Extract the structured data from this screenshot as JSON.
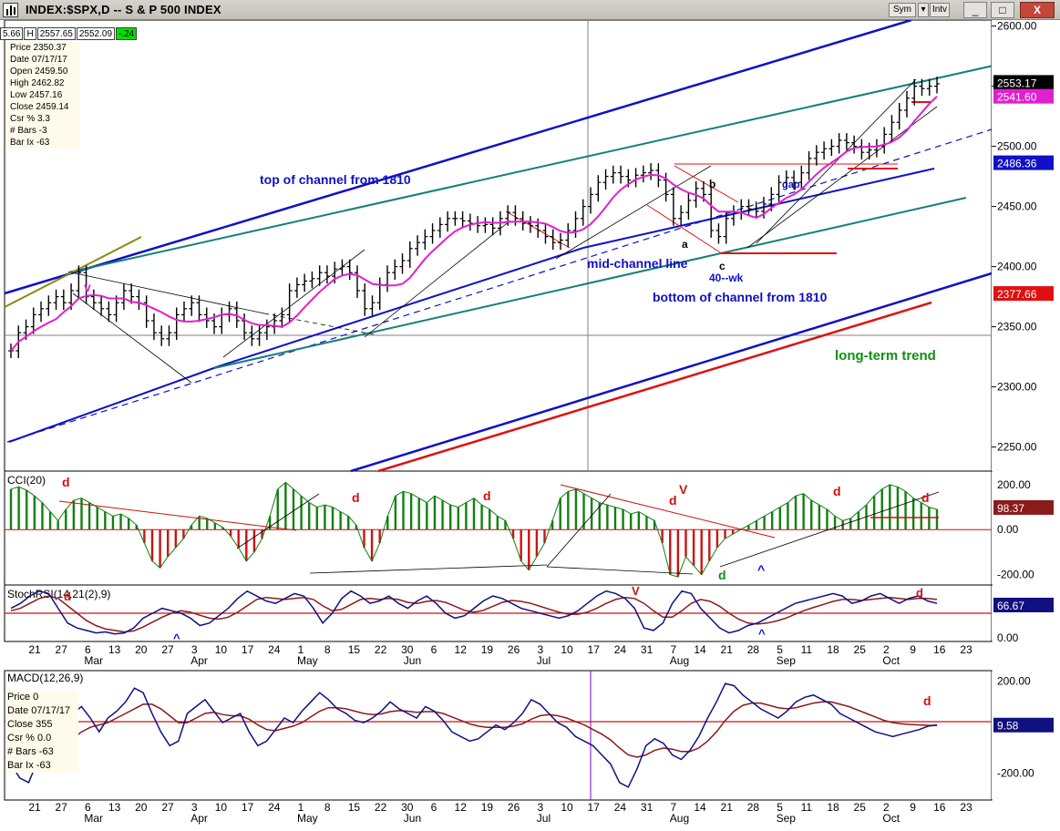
{
  "window": {
    "title": "INDEX:$SPX,D -- S & P 500 INDEX",
    "sym_label": "Sym",
    "intv_label": "Intv",
    "min_label": "_",
    "max_label": "□",
    "close_label": "X"
  },
  "ohlc_strip": {
    "left": "5.66",
    "high_label": "H",
    "high": "2557.65",
    "close": "2552.09",
    "change": "-.24"
  },
  "info_box": [
    "Price  2350.37",
    "Date   07/17/17",
    "Open   2459.50",
    "High   2462.82",
    "Low    2457.16",
    "Close  2459.14",
    "Csr %  3.3",
    "# Bars -3",
    "Bar Ix -63"
  ],
  "macd_info": [
    "Price  0",
    "Date   07/17/17",
    "Close  355",
    "Csr %  0.0",
    "# Bars -63",
    "Bar Ix -63"
  ],
  "colors": {
    "channel_blue": "#1010c8",
    "channel_teal": "#10807a",
    "ma_magenta": "#e020d0",
    "trend_red": "#e01010",
    "cci_green": "#108010",
    "cci_red": "#d01010",
    "stoch_blue": "#101080",
    "stoch_brown": "#8b1a1a",
    "annot_green": "#109010"
  },
  "chart_data": [
    {
      "type": "line",
      "panel": "price",
      "title": "",
      "y_ticks": [
        "2600.00",
        "2550.00",
        "2500.00",
        "2450.00",
        "2400.00",
        "2350.00",
        "2300.00",
        "2250.00"
      ],
      "ylim": [
        2230,
        2605
      ],
      "price_tags": [
        {
          "value": "2553.17",
          "bg": "#000000",
          "fg": "#ffffff"
        },
        {
          "value": "2541.60",
          "bg": "#e020d0",
          "fg": "#ffffff"
        },
        {
          "value": "2486.36",
          "bg": "#1010c8",
          "fg": "#ffffff"
        },
        {
          "value": "2377.66",
          "bg": "#e01010",
          "fg": "#ffffff"
        }
      ],
      "annotations": [
        "top of channel from 1810",
        "mid-channel line",
        "bottom of channel from 1810",
        "long-term trend",
        "40--wk",
        "a",
        "b",
        "c",
        "v",
        "gap"
      ],
      "closes": [
        2330,
        2345,
        2350,
        2360,
        2365,
        2370,
        2375,
        2370,
        2380,
        2395,
        2375,
        2370,
        2365,
        2360,
        2370,
        2380,
        2375,
        2370,
        2355,
        2345,
        2340,
        2345,
        2360,
        2365,
        2370,
        2360,
        2355,
        2350,
        2360,
        2365,
        2355,
        2345,
        2340,
        2345,
        2350,
        2355,
        2360,
        2380,
        2385,
        2388,
        2390,
        2395,
        2392,
        2398,
        2400,
        2395,
        2380,
        2365,
        2370,
        2385,
        2395,
        2400,
        2405,
        2415,
        2420,
        2425,
        2430,
        2435,
        2440,
        2440,
        2438,
        2436,
        2434,
        2435,
        2432,
        2440,
        2445,
        2440,
        2436,
        2434,
        2430,
        2425,
        2420,
        2422,
        2430,
        2440,
        2450,
        2460,
        2470,
        2475,
        2478,
        2475,
        2472,
        2476,
        2478,
        2480,
        2472,
        2460,
        2440,
        2445,
        2455,
        2465,
        2460,
        2430,
        2425,
        2440,
        2445,
        2450,
        2448,
        2446,
        2452,
        2460,
        2470,
        2474,
        2470,
        2478,
        2490,
        2495,
        2498,
        2500,
        2505,
        2503,
        2500,
        2495,
        2497,
        2500,
        2510,
        2520,
        2530,
        2540,
        2550,
        2548,
        2550,
        2552
      ]
    },
    {
      "type": "bar",
      "panel": "cci",
      "title": "CCI(20)",
      "y_ticks": [
        "200.00",
        "0.00",
        "-200.00"
      ],
      "ylim": [
        -230,
        240
      ],
      "current_tag": "98.37",
      "annotations": [
        "d",
        "d",
        "d",
        "d",
        "d",
        "V",
        "d",
        "d",
        "^"
      ],
      "values": [
        180,
        190,
        175,
        150,
        120,
        80,
        40,
        90,
        130,
        140,
        120,
        100,
        80,
        60,
        70,
        50,
        20,
        -60,
        -140,
        -170,
        -120,
        -80,
        -40,
        20,
        60,
        50,
        30,
        10,
        -30,
        -80,
        -140,
        -100,
        -40,
        60,
        180,
        210,
        180,
        150,
        120,
        100,
        110,
        100,
        80,
        60,
        20,
        -80,
        -140,
        -60,
        60,
        150,
        170,
        160,
        140,
        120,
        150,
        130,
        110,
        100,
        120,
        140,
        110,
        90,
        60,
        40,
        -40,
        -140,
        -180,
        -120,
        -60,
        40,
        140,
        170,
        180,
        160,
        140,
        120,
        110,
        100,
        90,
        70,
        80,
        60,
        40,
        -60,
        -200,
        -210,
        -120,
        -160,
        -200,
        -140,
        -80,
        -40,
        -20,
        0,
        20,
        40,
        60,
        80,
        100,
        120,
        150,
        160,
        130,
        110,
        90,
        60,
        40,
        50,
        80,
        110,
        150,
        180,
        200,
        190,
        170,
        140,
        120,
        100,
        90
      ]
    },
    {
      "type": "line",
      "panel": "stochrsi",
      "title": "StochRSI(14,21(2),9)",
      "y_ticks": [
        "0.00"
      ],
      "ylim": [
        0,
        100
      ],
      "current_tag": "66.67",
      "annotations": [
        "d",
        "^",
        "V",
        "^",
        "d"
      ],
      "k": [
        60,
        70,
        85,
        95,
        90,
        60,
        30,
        20,
        15,
        10,
        12,
        8,
        10,
        20,
        40,
        50,
        60,
        55,
        50,
        40,
        25,
        30,
        45,
        60,
        80,
        95,
        85,
        75,
        70,
        80,
        90,
        85,
        60,
        30,
        50,
        80,
        95,
        85,
        70,
        75,
        85,
        70,
        60,
        75,
        85,
        70,
        50,
        40,
        45,
        60,
        75,
        85,
        80,
        70,
        60,
        55,
        50,
        45,
        40,
        45,
        55,
        70,
        85,
        95,
        90,
        80,
        60,
        20,
        15,
        30,
        70,
        95,
        90,
        60,
        40,
        20,
        10,
        15,
        25,
        30,
        40,
        50,
        60,
        70,
        75,
        80,
        85,
        90,
        85,
        70,
        75,
        85,
        90,
        80,
        70,
        80,
        85,
        75,
        70
      ],
      "d": [
        55,
        60,
        70,
        80,
        85,
        80,
        65,
        50,
        35,
        25,
        18,
        15,
        12,
        14,
        22,
        32,
        42,
        50,
        55,
        52,
        46,
        40,
        38,
        42,
        52,
        65,
        78,
        82,
        80,
        78,
        80,
        82,
        78,
        65,
        55,
        58,
        68,
        78,
        80,
        78,
        80,
        78,
        72,
        70,
        74,
        76,
        72,
        64,
        56,
        52,
        56,
        64,
        72,
        76,
        74,
        70,
        64,
        58,
        52,
        48,
        48,
        52,
        60,
        70,
        78,
        82,
        80,
        70,
        55,
        42,
        42,
        55,
        70,
        78,
        74,
        64,
        50,
        38,
        30,
        28,
        30,
        34,
        40,
        48,
        56,
        62,
        68,
        74,
        78,
        78,
        76,
        78,
        80,
        82,
        80,
        78,
        80,
        80,
        78
      ]
    },
    {
      "type": "line",
      "panel": "macd",
      "title": "MACD(12,26,9)",
      "y_ticks": [
        "200.00",
        "-200.00"
      ],
      "ylim": [
        -300,
        230
      ],
      "current_tag": "9.58",
      "annotations": [
        "d"
      ],
      "macd": [
        -160,
        -220,
        -240,
        -150,
        -80,
        -40,
        -20,
        60,
        90,
        40,
        -20,
        40,
        70,
        110,
        170,
        150,
        60,
        -20,
        -80,
        -60,
        60,
        90,
        120,
        70,
        20,
        40,
        60,
        -20,
        -80,
        -60,
        -10,
        40,
        20,
        70,
        110,
        150,
        120,
        80,
        60,
        30,
        20,
        40,
        70,
        110,
        80,
        60,
        40,
        90,
        70,
        30,
        -20,
        -40,
        -60,
        -50,
        -20,
        10,
        -10,
        20,
        60,
        120,
        100,
        60,
        20,
        0,
        -40,
        -60,
        -80,
        -120,
        -160,
        -240,
        -260,
        -180,
        -80,
        -50,
        -70,
        -120,
        -140,
        -100,
        -40,
        40,
        110,
        190,
        180,
        140,
        110,
        80,
        60,
        40,
        70,
        110,
        130,
        140,
        120,
        100,
        60,
        40,
        20,
        0,
        -20,
        -30,
        -40,
        -30,
        -20,
        -10,
        5,
        10
      ],
      "signal": [
        -130,
        -140,
        -150,
        -140,
        -120,
        -100,
        -80,
        -50,
        -20,
        0,
        10,
        20,
        40,
        60,
        80,
        100,
        100,
        80,
        50,
        20,
        20,
        40,
        60,
        65,
        55,
        50,
        50,
        35,
        10,
        -10,
        -15,
        -5,
        5,
        20,
        45,
        70,
        85,
        85,
        80,
        70,
        60,
        55,
        58,
        68,
        72,
        70,
        65,
        68,
        68,
        60,
        45,
        30,
        15,
        5,
        0,
        0,
        0,
        5,
        15,
        35,
        50,
        55,
        50,
        40,
        25,
        10,
        -10,
        -30,
        -55,
        -90,
        -120,
        -130,
        -120,
        -100,
        -90,
        -95,
        -105,
        -105,
        -90,
        -60,
        -20,
        30,
        70,
        95,
        105,
        105,
        95,
        85,
        80,
        85,
        95,
        105,
        110,
        110,
        100,
        90,
        75,
        60,
        45,
        30,
        20,
        15,
        12,
        10,
        8,
        8
      ]
    }
  ],
  "x_axis": {
    "days": [
      "21",
      "27",
      "6",
      "13",
      "20",
      "27",
      "3",
      "10",
      "17",
      "24",
      "1",
      "8",
      "15",
      "22",
      "30",
      "6",
      "12",
      "19",
      "26",
      "3",
      "10",
      "17",
      "24",
      "31",
      "7",
      "14",
      "21",
      "28",
      "5",
      "11",
      "18",
      "25",
      "2",
      "9",
      "16",
      "23"
    ],
    "months": [
      "Mar",
      "Apr",
      "May",
      "Jun",
      "Jul",
      "Aug",
      "Sep",
      "Oct"
    ]
  }
}
